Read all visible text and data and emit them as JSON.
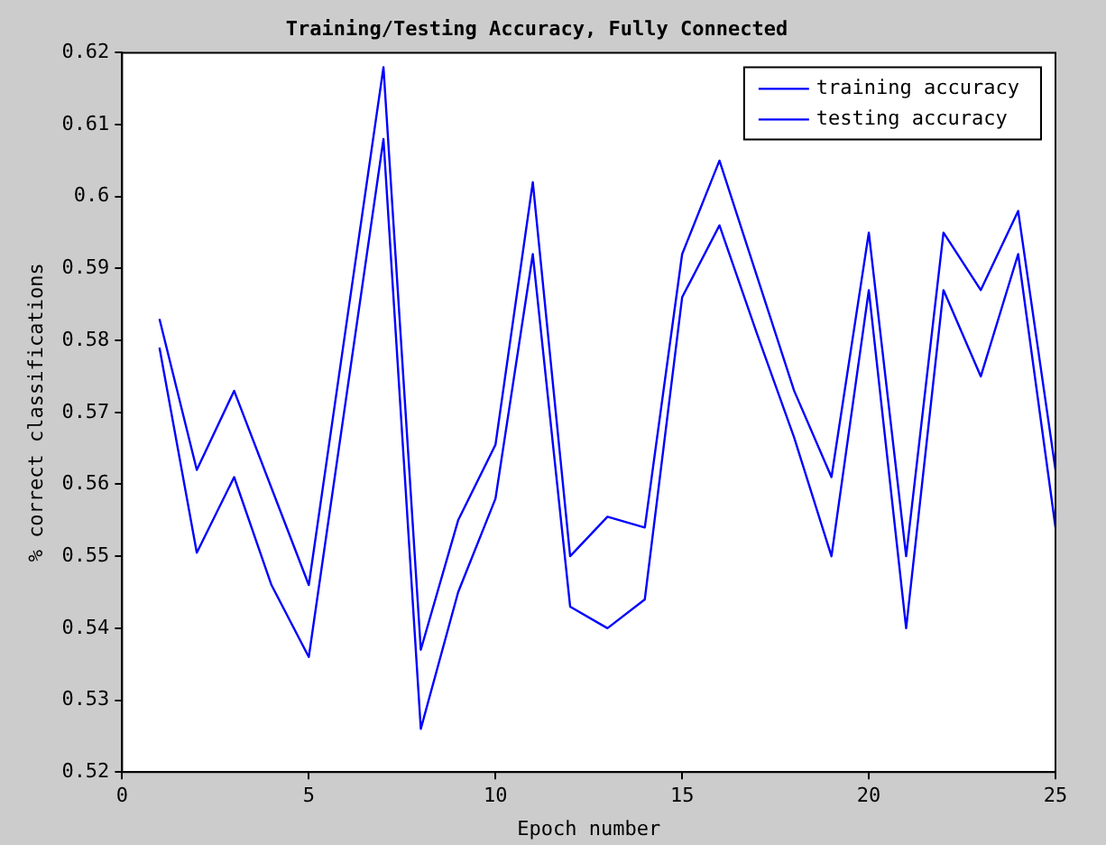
{
  "chart_data": {
    "type": "line",
    "title": "Training/Testing Accuracy, Fully Connected",
    "xlabel": "Epoch number",
    "ylabel": "% correct classifications",
    "x": [
      1,
      2,
      3,
      4,
      5,
      6,
      7,
      8,
      9,
      10,
      11,
      12,
      13,
      14,
      15,
      16,
      17,
      18,
      19,
      20,
      21,
      22,
      23,
      24,
      25
    ],
    "series": [
      {
        "name": "training accuracy",
        "color": "#0000ff",
        "values": [
          0.583,
          0.562,
          0.573,
          0.5595,
          0.546,
          0.582,
          0.618,
          0.537,
          0.555,
          0.5655,
          0.602,
          0.55,
          0.5555,
          0.554,
          0.592,
          0.605,
          0.589,
          0.573,
          0.561,
          0.595,
          0.55,
          0.595,
          0.587,
          0.598,
          0.562
        ]
      },
      {
        "name": "testing accuracy",
        "color": "#0000ff",
        "values": [
          0.579,
          0.5505,
          0.561,
          0.546,
          0.536,
          0.572,
          0.608,
          0.526,
          0.545,
          0.558,
          0.592,
          0.543,
          0.54,
          0.544,
          0.586,
          0.596,
          0.581,
          0.5665,
          0.55,
          0.587,
          0.54,
          0.587,
          0.575,
          0.592,
          0.554
        ]
      }
    ],
    "xlim": [
      0,
      25
    ],
    "xticks": [
      0,
      5,
      10,
      15,
      20,
      25
    ],
    "ylim": [
      0.52,
      0.62
    ],
    "yticks": [
      {
        "value": 0.52,
        "label": "0.52"
      },
      {
        "value": 0.53,
        "label": "0.53"
      },
      {
        "value": 0.54,
        "label": "0.54"
      },
      {
        "value": 0.55,
        "label": "0.55"
      },
      {
        "value": 0.56,
        "label": "0.56"
      },
      {
        "value": 0.57,
        "label": "0.57"
      },
      {
        "value": 0.58,
        "label": "0.58"
      },
      {
        "value": 0.59,
        "label": "0.59"
      },
      {
        "value": 0.6,
        "label": "0.6"
      },
      {
        "value": 0.61,
        "label": "0.61"
      },
      {
        "value": 0.62,
        "label": "0.62"
      }
    ],
    "grid": false,
    "legend": "top right",
    "marker": "none",
    "line_style": "solid"
  }
}
